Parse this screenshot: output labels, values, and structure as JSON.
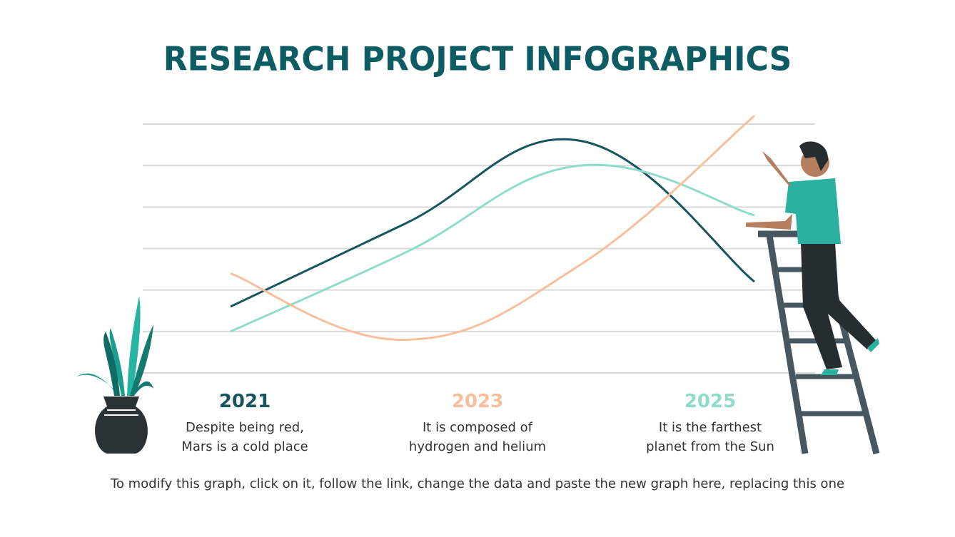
{
  "title": "RESEARCH PROJECT INFOGRAPHICS",
  "colors": {
    "title": "#0d5c63",
    "dark_teal": "#17555e",
    "mint": "#8fdccb",
    "peach": "#f7bf9c",
    "grid": "#d9d9d9"
  },
  "columns": [
    {
      "year": "2021",
      "text1": "Despite being red,",
      "text2": "Mars is a cold place",
      "color": "#17555e"
    },
    {
      "year": "2023",
      "text1": "It is composed of",
      "text2": "hydrogen and helium",
      "color": "#f7bf9c"
    },
    {
      "year": "2025",
      "text1": "It is the farthest",
      "text2": "planet from the Sun",
      "color": "#8fdccb"
    }
  ],
  "footer": "To modify this graph, click on it, follow the link, change the data and paste the new graph here, replacing this one",
  "chart_data": {
    "type": "line",
    "x": [
      1,
      2,
      3,
      4
    ],
    "ylim": [
      0,
      6
    ],
    "grid": true,
    "legend": "none",
    "smooth": true,
    "series": [
      {
        "values": [
          1.6,
          3.6,
          5.6,
          2.2
        ],
        "color": "#17555e"
      },
      {
        "values": [
          1.0,
          2.9,
          5.0,
          3.8
        ],
        "color": "#8fdccb"
      },
      {
        "values": [
          2.4,
          0.8,
          2.6,
          6.2
        ],
        "color": "#f7bf9c"
      }
    ]
  }
}
